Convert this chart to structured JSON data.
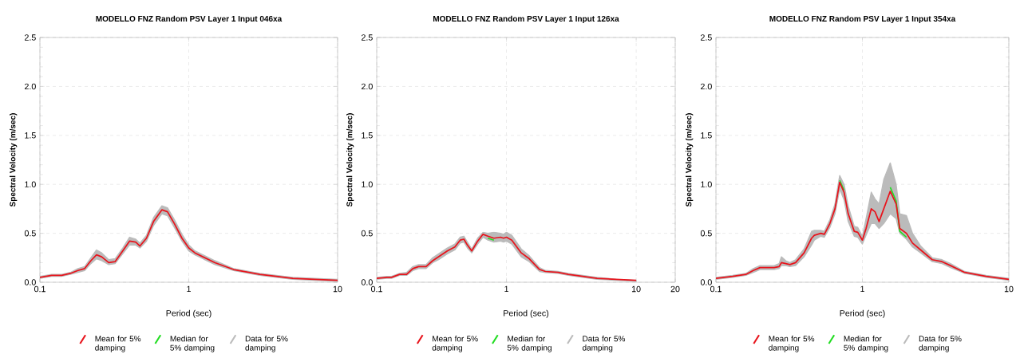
{
  "chart_data": [
    {
      "type": "line",
      "title": "MODELLO FNZ Random PSV Layer 1 Input 046xa",
      "xlabel": "Period (sec)",
      "ylabel": "Spectral Velocity (m/sec)",
      "log": "x",
      "grid": true,
      "legend": "bottom",
      "xlim": [
        0.1,
        10
      ],
      "xticks": [
        0.1,
        1,
        10
      ],
      "ylim": [
        0,
        2.5
      ],
      "yticks": [
        {
          "value": 0,
          "label": "0.0"
        },
        {
          "value": 0.5,
          "label": "0.5"
        },
        {
          "value": 1,
          "label": "1.0"
        },
        {
          "value": 1.5,
          "label": "1.5"
        },
        {
          "value": 2,
          "label": "2.0"
        },
        {
          "value": 2.5,
          "label": "2.5"
        }
      ],
      "x": [
        0.1,
        0.12,
        0.14,
        0.16,
        0.18,
        0.2,
        0.22,
        0.24,
        0.26,
        0.29,
        0.32,
        0.36,
        0.4,
        0.44,
        0.47,
        0.52,
        0.58,
        0.66,
        0.72,
        0.8,
        0.9,
        1.0,
        1.1,
        1.5,
        2,
        3,
        5,
        7,
        10
      ],
      "series": [
        {
          "name": "Mean for 5% damping",
          "color": "#e8141c",
          "values": [
            0.05,
            0.07,
            0.07,
            0.09,
            0.12,
            0.14,
            0.22,
            0.28,
            0.26,
            0.2,
            0.21,
            0.32,
            0.42,
            0.41,
            0.37,
            0.45,
            0.62,
            0.74,
            0.72,
            0.6,
            0.45,
            0.35,
            0.3,
            0.2,
            0.13,
            0.08,
            0.04,
            0.03,
            0.02
          ]
        },
        {
          "name": "Median for 5% damping",
          "color": "#22dd22",
          "values": [
            null,
            null,
            null,
            null,
            null,
            null,
            null,
            null,
            null,
            null,
            null,
            null,
            null,
            null,
            null,
            null,
            null,
            null,
            null,
            null,
            null,
            null,
            null,
            null,
            null,
            null,
            null,
            null,
            null
          ]
        },
        {
          "name": "Data for 5% damping",
          "color": "#bbbbbb",
          "values": [
            null,
            null,
            null,
            null,
            null,
            null,
            null,
            null,
            null,
            null,
            null,
            null,
            null,
            null,
            null,
            null,
            null,
            null,
            null,
            null,
            null,
            null,
            null,
            null,
            null,
            null,
            null,
            null,
            null
          ],
          "upper": [
            0.06,
            0.08,
            0.08,
            0.1,
            0.14,
            0.16,
            0.25,
            0.33,
            0.3,
            0.23,
            0.24,
            0.35,
            0.46,
            0.44,
            0.4,
            0.48,
            0.66,
            0.78,
            0.76,
            0.64,
            0.49,
            0.38,
            0.32,
            0.22,
            0.14,
            0.09,
            0.05,
            0.04,
            0.03
          ],
          "lower": [
            0.04,
            0.06,
            0.06,
            0.08,
            0.1,
            0.12,
            0.19,
            0.24,
            0.22,
            0.18,
            0.19,
            0.29,
            0.38,
            0.38,
            0.35,
            0.42,
            0.58,
            0.7,
            0.68,
            0.56,
            0.42,
            0.32,
            0.28,
            0.18,
            0.12,
            0.07,
            0.03,
            0.02,
            0.01
          ]
        }
      ]
    },
    {
      "type": "line",
      "title": "MODELLO FNZ Random PSV Layer 1 Input 126xa",
      "xlabel": "Period (sec)",
      "ylabel": "Spectral Velocity (m/sec)",
      "log": "x",
      "grid": true,
      "legend": "bottom",
      "xlim": [
        0.1,
        20
      ],
      "xticks": [
        0.1,
        1,
        10,
        20
      ],
      "ylim": [
        0,
        2.5
      ],
      "yticks": [
        {
          "value": 0,
          "label": "0.0"
        },
        {
          "value": 0.5,
          "label": "0.5"
        },
        {
          "value": 1,
          "label": "1.0"
        },
        {
          "value": 1.5,
          "label": "1.5"
        },
        {
          "value": 2,
          "label": "2.0"
        },
        {
          "value": 2.5,
          "label": "2.5"
        }
      ],
      "x": [
        0.1,
        0.12,
        0.13,
        0.15,
        0.17,
        0.19,
        0.21,
        0.24,
        0.27,
        0.3,
        0.35,
        0.4,
        0.44,
        0.47,
        0.5,
        0.54,
        0.6,
        0.66,
        0.72,
        0.8,
        0.9,
        0.95,
        1.0,
        1.1,
        1.3,
        1.5,
        1.8,
        2,
        2.5,
        3,
        5,
        7,
        10
      ],
      "series": [
        {
          "name": "Mean for 5% damping",
          "color": "#e8141c",
          "values": [
            0.04,
            0.05,
            0.05,
            0.08,
            0.08,
            0.14,
            0.16,
            0.16,
            0.22,
            0.26,
            0.32,
            0.36,
            0.43,
            0.44,
            0.38,
            0.32,
            0.42,
            0.49,
            0.47,
            0.45,
            0.46,
            0.45,
            0.46,
            0.43,
            0.3,
            0.24,
            0.13,
            0.11,
            0.1,
            0.08,
            0.04,
            0.03,
            0.02
          ]
        },
        {
          "name": "Median for 5% damping",
          "color": "#22dd22",
          "values": [
            null,
            null,
            null,
            null,
            null,
            null,
            null,
            null,
            null,
            null,
            null,
            null,
            null,
            null,
            null,
            null,
            null,
            null,
            0.45,
            0.43,
            null,
            null,
            null,
            null,
            null,
            null,
            null,
            null,
            null,
            null,
            null,
            null,
            null
          ]
        },
        {
          "name": "Data for 5% damping",
          "color": "#bbbbbb",
          "values": [
            null,
            null,
            null,
            null,
            null,
            null,
            null,
            null,
            null,
            null,
            null,
            null,
            null,
            null,
            null,
            null,
            null,
            null,
            null,
            null,
            null,
            null,
            null,
            null,
            null,
            null,
            null,
            null,
            null,
            null,
            null,
            null,
            null
          ],
          "upper": [
            0.05,
            0.06,
            0.06,
            0.09,
            0.1,
            0.16,
            0.18,
            0.18,
            0.25,
            0.29,
            0.35,
            0.39,
            0.46,
            0.47,
            0.41,
            0.34,
            0.45,
            0.51,
            0.5,
            0.51,
            0.5,
            0.49,
            0.51,
            0.48,
            0.34,
            0.27,
            0.15,
            0.12,
            0.11,
            0.09,
            0.05,
            0.03,
            0.02
          ],
          "lower": [
            0.03,
            0.04,
            0.04,
            0.07,
            0.07,
            0.12,
            0.14,
            0.14,
            0.2,
            0.23,
            0.29,
            0.33,
            0.4,
            0.41,
            0.35,
            0.3,
            0.39,
            0.46,
            0.43,
            0.41,
            0.42,
            0.41,
            0.42,
            0.39,
            0.26,
            0.21,
            0.11,
            0.1,
            0.09,
            0.07,
            0.03,
            0.02,
            0.01
          ]
        }
      ]
    },
    {
      "type": "line",
      "title": "MODELLO FNZ Random PSV Layer 1 Input 354xa",
      "xlabel": "Period (sec)",
      "ylabel": "Spectral Velocity (m/sec)",
      "log": "x",
      "grid": true,
      "legend": "bottom",
      "xlim": [
        0.1,
        10
      ],
      "xticks": [
        0.1,
        1,
        10
      ],
      "ylim": [
        0,
        2.5
      ],
      "yticks": [
        {
          "value": 0,
          "label": "0.0"
        },
        {
          "value": 0.5,
          "label": "0.5"
        },
        {
          "value": 1,
          "label": "1.0"
        },
        {
          "value": 1.5,
          "label": "1.5"
        },
        {
          "value": 2,
          "label": "2.0"
        },
        {
          "value": 2.5,
          "label": "2.5"
        }
      ],
      "x": [
        0.1,
        0.13,
        0.16,
        0.18,
        0.2,
        0.25,
        0.27,
        0.28,
        0.3,
        0.32,
        0.35,
        0.4,
        0.45,
        0.47,
        0.52,
        0.55,
        0.6,
        0.65,
        0.7,
        0.75,
        0.8,
        0.88,
        0.93,
        1.0,
        1.06,
        1.15,
        1.22,
        1.3,
        1.4,
        1.55,
        1.7,
        1.8,
        2.0,
        2.2,
        2.5,
        3,
        3.5,
        4,
        5,
        7,
        10
      ],
      "series": [
        {
          "name": "Mean for 5% damping",
          "color": "#e8141c",
          "values": [
            0.04,
            0.06,
            0.08,
            0.12,
            0.15,
            0.15,
            0.16,
            0.2,
            0.19,
            0.18,
            0.2,
            0.3,
            0.45,
            0.48,
            0.5,
            0.49,
            0.6,
            0.75,
            1.02,
            0.92,
            0.7,
            0.52,
            0.51,
            0.43,
            0.55,
            0.75,
            0.72,
            0.62,
            0.75,
            0.93,
            0.8,
            0.55,
            0.5,
            0.4,
            0.33,
            0.23,
            0.21,
            0.17,
            0.1,
            0.06,
            0.03
          ]
        },
        {
          "name": "Median for 5% damping",
          "color": "#22dd22",
          "values": [
            null,
            null,
            null,
            null,
            null,
            null,
            null,
            null,
            null,
            null,
            null,
            null,
            null,
            null,
            null,
            null,
            null,
            null,
            1.04,
            0.94,
            null,
            null,
            null,
            null,
            null,
            null,
            null,
            null,
            null,
            0.97,
            0.83,
            0.52,
            0.46,
            null,
            null,
            null,
            null,
            null,
            null,
            null,
            null
          ]
        },
        {
          "name": "Data for 5% damping",
          "color": "#bbbbbb",
          "values": [
            null,
            null,
            null,
            null,
            null,
            null,
            null,
            null,
            null,
            null,
            null,
            null,
            null,
            null,
            null,
            null,
            null,
            null,
            null,
            null,
            null,
            null,
            null,
            null,
            null,
            null,
            null,
            null,
            null,
            null,
            null,
            null,
            null,
            null,
            null,
            null,
            null,
            null,
            null,
            null,
            null
          ],
          "upper": [
            0.05,
            0.07,
            0.09,
            0.14,
            0.17,
            0.17,
            0.19,
            0.26,
            0.22,
            0.2,
            0.23,
            0.34,
            0.52,
            0.53,
            0.53,
            0.52,
            0.64,
            0.8,
            1.09,
            1.0,
            0.78,
            0.57,
            0.56,
            0.47,
            0.65,
            0.92,
            0.85,
            0.8,
            1.05,
            1.22,
            1.0,
            0.7,
            0.68,
            0.5,
            0.37,
            0.25,
            0.23,
            0.19,
            0.11,
            0.07,
            0.04
          ],
          "lower": [
            0.03,
            0.05,
            0.07,
            0.1,
            0.13,
            0.13,
            0.14,
            0.17,
            0.17,
            0.16,
            0.17,
            0.26,
            0.38,
            0.43,
            0.47,
            0.46,
            0.56,
            0.7,
            0.95,
            0.84,
            0.62,
            0.47,
            0.46,
            0.39,
            0.48,
            0.6,
            0.6,
            0.55,
            0.6,
            0.7,
            0.65,
            0.5,
            0.44,
            0.36,
            0.3,
            0.21,
            0.19,
            0.15,
            0.09,
            0.05,
            0.02
          ]
        }
      ]
    }
  ]
}
